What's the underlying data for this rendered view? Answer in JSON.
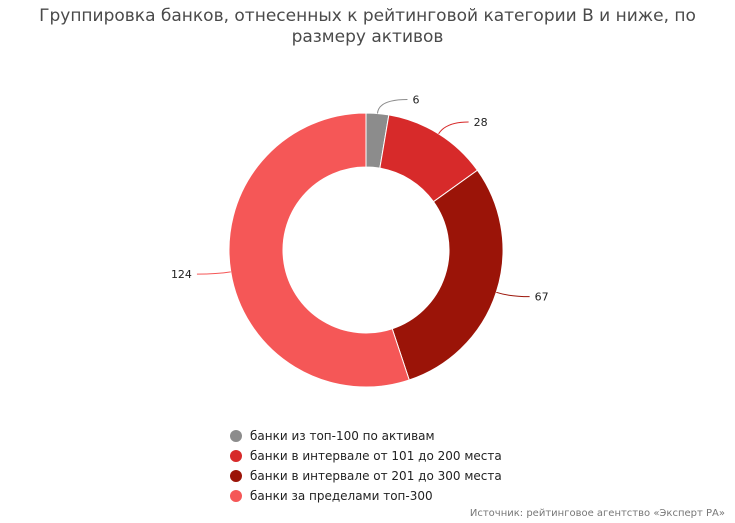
{
  "chart_data": {
    "type": "pie",
    "title": "Группировка банков, отнесенных к рейтинговой категории B и ниже, по размеру активов",
    "legend_position": "bottom",
    "slices": [
      {
        "label": "банки из топ-100 по активам",
        "value": 6,
        "color": "#8c8c8c"
      },
      {
        "label": "банки в интервале от 101 до 200 места",
        "value": 28,
        "color": "#d72a2a"
      },
      {
        "label": "банки в интервале от 201 до 300 места",
        "value": 67,
        "color": "#9b1408"
      },
      {
        "label": "банки за пределами топ-300",
        "value": 124,
        "color": "#f55757"
      }
    ]
  },
  "source": "Источник: рейтинговое агентство «Эксперт РА»"
}
